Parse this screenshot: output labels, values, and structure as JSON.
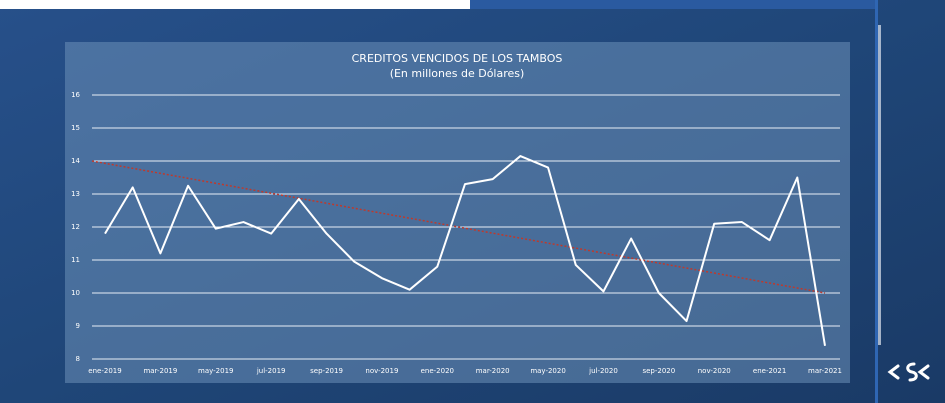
{
  "chart_data": {
    "type": "line",
    "title": "CREDITOS VENCIDOS DE LOS TAMBOS",
    "subtitle": "(En millones de Dólares)",
    "categories": [
      "ene-2019",
      null,
      "mar-2019",
      null,
      "may-2019",
      null,
      "jul-2019",
      null,
      "sep-2019",
      null,
      "nov-2019",
      null,
      "ene-2020",
      null,
      "mar-2020",
      null,
      "may-2020",
      null,
      "jul-2020",
      null,
      "sep-2020",
      null,
      "nov-2020",
      null,
      "ene-2021",
      null,
      "mar-2021"
    ],
    "series": [
      {
        "color": "#ffffff",
        "values": [
          11.8,
          13.2,
          11.2,
          13.25,
          11.95,
          12.15,
          11.8,
          12.85,
          11.8,
          10.95,
          10.45,
          10.1,
          10.8,
          13.3,
          13.45,
          14.15,
          13.8,
          10.85,
          10.05,
          11.65,
          10.0,
          9.15,
          12.1,
          12.15,
          11.6,
          13.5,
          8.4
        ]
      }
    ],
    "trendline": {
      "color": "#c0392b",
      "values": [
        14,
        10
      ]
    },
    "ylim": [
      8,
      16
    ],
    "yticks": [
      8,
      9,
      10,
      11,
      12,
      13,
      14,
      15,
      16
    ],
    "grid": true
  }
}
